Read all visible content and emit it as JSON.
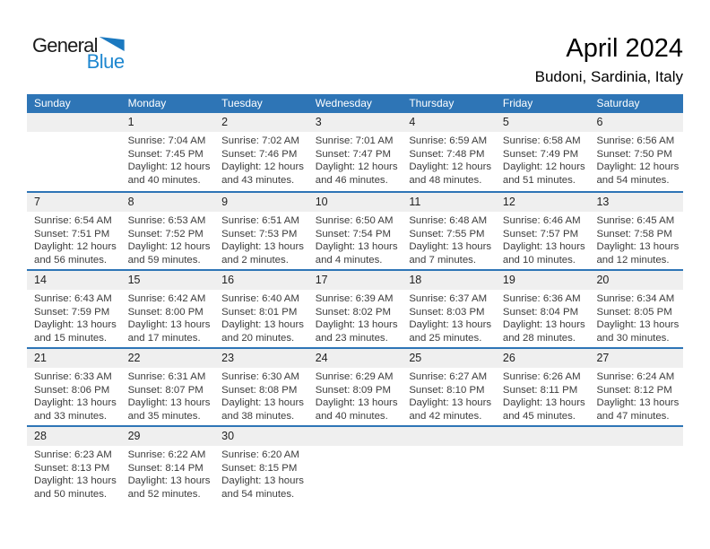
{
  "logo": {
    "general": "General",
    "blue": "Blue"
  },
  "header": {
    "title": "April 2024",
    "subtitle": "Budoni, Sardinia, Italy"
  },
  "colors": {
    "header_bg": "#2e75b6",
    "header_text": "#ffffff",
    "separator": "#2e75b6",
    "day_band_bg": "#efefef",
    "day_num_text": "#1f1f1f",
    "body_text": "#3c3c3c",
    "logo_triangle": "#1b79c0",
    "logo_blue": "#1e87d0"
  },
  "calendar": {
    "weekdays": [
      "Sunday",
      "Monday",
      "Tuesday",
      "Wednesday",
      "Thursday",
      "Friday",
      "Saturday"
    ],
    "weeks": [
      {
        "days": [
          {
            "num": "",
            "lines": []
          },
          {
            "num": "1",
            "lines": [
              "Sunrise: 7:04 AM",
              "Sunset: 7:45 PM",
              "Daylight: 12 hours",
              "and 40 minutes."
            ]
          },
          {
            "num": "2",
            "lines": [
              "Sunrise: 7:02 AM",
              "Sunset: 7:46 PM",
              "Daylight: 12 hours",
              "and 43 minutes."
            ]
          },
          {
            "num": "3",
            "lines": [
              "Sunrise: 7:01 AM",
              "Sunset: 7:47 PM",
              "Daylight: 12 hours",
              "and 46 minutes."
            ]
          },
          {
            "num": "4",
            "lines": [
              "Sunrise: 6:59 AM",
              "Sunset: 7:48 PM",
              "Daylight: 12 hours",
              "and 48 minutes."
            ]
          },
          {
            "num": "5",
            "lines": [
              "Sunrise: 6:58 AM",
              "Sunset: 7:49 PM",
              "Daylight: 12 hours",
              "and 51 minutes."
            ]
          },
          {
            "num": "6",
            "lines": [
              "Sunrise: 6:56 AM",
              "Sunset: 7:50 PM",
              "Daylight: 12 hours",
              "and 54 minutes."
            ]
          }
        ]
      },
      {
        "days": [
          {
            "num": "7",
            "lines": [
              "Sunrise: 6:54 AM",
              "Sunset: 7:51 PM",
              "Daylight: 12 hours",
              "and 56 minutes."
            ]
          },
          {
            "num": "8",
            "lines": [
              "Sunrise: 6:53 AM",
              "Sunset: 7:52 PM",
              "Daylight: 12 hours",
              "and 59 minutes."
            ]
          },
          {
            "num": "9",
            "lines": [
              "Sunrise: 6:51 AM",
              "Sunset: 7:53 PM",
              "Daylight: 13 hours",
              "and 2 minutes."
            ]
          },
          {
            "num": "10",
            "lines": [
              "Sunrise: 6:50 AM",
              "Sunset: 7:54 PM",
              "Daylight: 13 hours",
              "and 4 minutes."
            ]
          },
          {
            "num": "11",
            "lines": [
              "Sunrise: 6:48 AM",
              "Sunset: 7:55 PM",
              "Daylight: 13 hours",
              "and 7 minutes."
            ]
          },
          {
            "num": "12",
            "lines": [
              "Sunrise: 6:46 AM",
              "Sunset: 7:57 PM",
              "Daylight: 13 hours",
              "and 10 minutes."
            ]
          },
          {
            "num": "13",
            "lines": [
              "Sunrise: 6:45 AM",
              "Sunset: 7:58 PM",
              "Daylight: 13 hours",
              "and 12 minutes."
            ]
          }
        ]
      },
      {
        "days": [
          {
            "num": "14",
            "lines": [
              "Sunrise: 6:43 AM",
              "Sunset: 7:59 PM",
              "Daylight: 13 hours",
              "and 15 minutes."
            ]
          },
          {
            "num": "15",
            "lines": [
              "Sunrise: 6:42 AM",
              "Sunset: 8:00 PM",
              "Daylight: 13 hours",
              "and 17 minutes."
            ]
          },
          {
            "num": "16",
            "lines": [
              "Sunrise: 6:40 AM",
              "Sunset: 8:01 PM",
              "Daylight: 13 hours",
              "and 20 minutes."
            ]
          },
          {
            "num": "17",
            "lines": [
              "Sunrise: 6:39 AM",
              "Sunset: 8:02 PM",
              "Daylight: 13 hours",
              "and 23 minutes."
            ]
          },
          {
            "num": "18",
            "lines": [
              "Sunrise: 6:37 AM",
              "Sunset: 8:03 PM",
              "Daylight: 13 hours",
              "and 25 minutes."
            ]
          },
          {
            "num": "19",
            "lines": [
              "Sunrise: 6:36 AM",
              "Sunset: 8:04 PM",
              "Daylight: 13 hours",
              "and 28 minutes."
            ]
          },
          {
            "num": "20",
            "lines": [
              "Sunrise: 6:34 AM",
              "Sunset: 8:05 PM",
              "Daylight: 13 hours",
              "and 30 minutes."
            ]
          }
        ]
      },
      {
        "days": [
          {
            "num": "21",
            "lines": [
              "Sunrise: 6:33 AM",
              "Sunset: 8:06 PM",
              "Daylight: 13 hours",
              "and 33 minutes."
            ]
          },
          {
            "num": "22",
            "lines": [
              "Sunrise: 6:31 AM",
              "Sunset: 8:07 PM",
              "Daylight: 13 hours",
              "and 35 minutes."
            ]
          },
          {
            "num": "23",
            "lines": [
              "Sunrise: 6:30 AM",
              "Sunset: 8:08 PM",
              "Daylight: 13 hours",
              "and 38 minutes."
            ]
          },
          {
            "num": "24",
            "lines": [
              "Sunrise: 6:29 AM",
              "Sunset: 8:09 PM",
              "Daylight: 13 hours",
              "and 40 minutes."
            ]
          },
          {
            "num": "25",
            "lines": [
              "Sunrise: 6:27 AM",
              "Sunset: 8:10 PM",
              "Daylight: 13 hours",
              "and 42 minutes."
            ]
          },
          {
            "num": "26",
            "lines": [
              "Sunrise: 6:26 AM",
              "Sunset: 8:11 PM",
              "Daylight: 13 hours",
              "and 45 minutes."
            ]
          },
          {
            "num": "27",
            "lines": [
              "Sunrise: 6:24 AM",
              "Sunset: 8:12 PM",
              "Daylight: 13 hours",
              "and 47 minutes."
            ]
          }
        ]
      },
      {
        "days": [
          {
            "num": "28",
            "lines": [
              "Sunrise: 6:23 AM",
              "Sunset: 8:13 PM",
              "Daylight: 13 hours",
              "and 50 minutes."
            ]
          },
          {
            "num": "29",
            "lines": [
              "Sunrise: 6:22 AM",
              "Sunset: 8:14 PM",
              "Daylight: 13 hours",
              "and 52 minutes."
            ]
          },
          {
            "num": "30",
            "lines": [
              "Sunrise: 6:20 AM",
              "Sunset: 8:15 PM",
              "Daylight: 13 hours",
              "and 54 minutes."
            ]
          },
          {
            "num": "",
            "lines": []
          },
          {
            "num": "",
            "lines": []
          },
          {
            "num": "",
            "lines": []
          },
          {
            "num": "",
            "lines": []
          }
        ]
      }
    ]
  }
}
